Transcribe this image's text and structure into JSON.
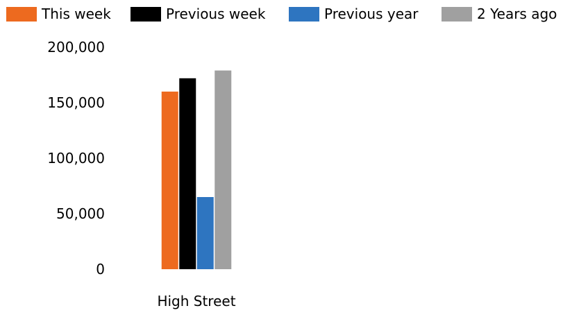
{
  "chart_data": {
    "type": "bar",
    "categories": [
      "High Street"
    ],
    "series": [
      {
        "name": "This week",
        "values": [
          160000
        ],
        "color": "#ED6A1F"
      },
      {
        "name": "Previous week",
        "values": [
          172000
        ],
        "color": "#000000"
      },
      {
        "name": "Previous year",
        "values": [
          65000
        ],
        "color": "#2E75C0"
      },
      {
        "name": "2 Years ago",
        "values": [
          179000
        ],
        "color": "#A0A0A0"
      }
    ],
    "yticks": [
      "0",
      "50,000",
      "100,000",
      "150,000",
      "200,000"
    ],
    "ylim": [
      0,
      200000
    ],
    "grid": false,
    "legend_position": "top"
  }
}
